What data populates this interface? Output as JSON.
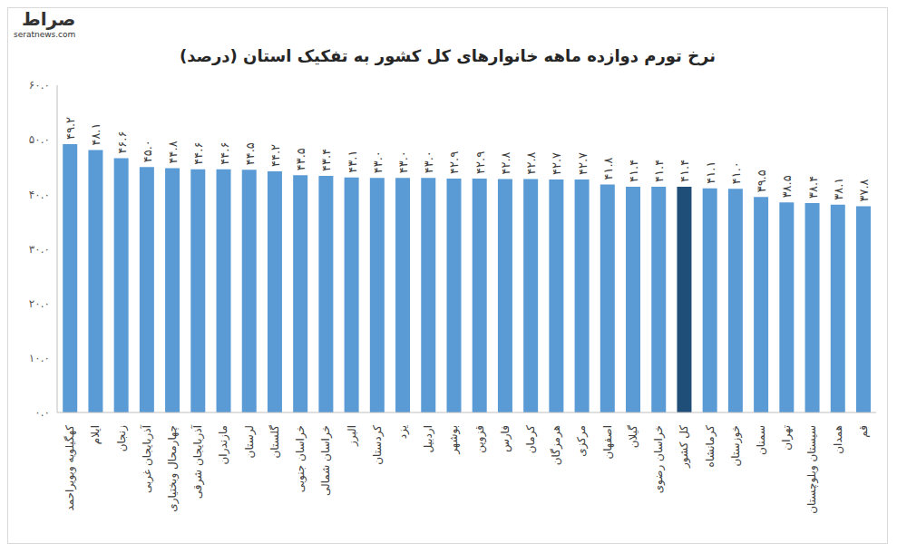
{
  "chart_data": {
    "type": "bar",
    "title": "نرخ تورم دوازده ماهه خانوارهای کل کشور به تفکیک استان (درصد)",
    "annotations": [
      "صراط",
      "seratnews.com"
    ],
    "categories": [
      "کهگیلویه وبویراحمد",
      "ایلام",
      "زنجان",
      "آذربایجان غربی",
      "چهارمحال وبختیاری",
      "آذربایجان شرقی",
      "مازندران",
      "لرستان",
      "گلستان",
      "خراسان جنوبی",
      "خراسان شمالی",
      "البرز",
      "کردستان",
      "یزد",
      "اردبیل",
      "بوشهر",
      "قزوین",
      "فارس",
      "کرمان",
      "هرمزگان",
      "مرکزی",
      "اصفهان",
      "گیلان",
      "خراسان رضوی",
      "کل کشور",
      "کرمانشاه",
      "خوزستان",
      "سمنان",
      "تهران",
      "سیستان وبلوچستان",
      "همدان",
      "قم"
    ],
    "values": [
      49.2,
      48.1,
      46.6,
      45.0,
      44.8,
      44.6,
      44.6,
      44.5,
      44.2,
      43.5,
      43.4,
      43.1,
      43.0,
      43.0,
      43.0,
      42.9,
      42.9,
      42.8,
      42.8,
      42.7,
      42.7,
      41.8,
      41.4,
      41.4,
      41.4,
      41.1,
      41.0,
      39.5,
      38.5,
      38.4,
      38.1,
      37.8
    ],
    "value_labels": [
      "۴۹.۲",
      "۴۸.۱",
      "۴۶.۶",
      "۴۵.۰",
      "۴۴.۸",
      "۴۴.۶",
      "۴۴.۶",
      "۴۴.۵",
      "۴۴.۲",
      "۴۳.۵",
      "۴۳.۴",
      "۴۳.۱",
      "۴۳.۰",
      "۴۳.۰",
      "۴۳.۰",
      "۴۲.۹",
      "۴۲.۹",
      "۴۲.۸",
      "۴۲.۸",
      "۴۲.۷",
      "۴۲.۷",
      "۴۱.۸",
      "۴۱.۴",
      "۴۱.۴",
      "۴۱.۴",
      "۴۱.۱",
      "۴۱.۰",
      "۳۹.۵",
      "۳۸.۵",
      "۳۸.۴",
      "۳۸.۱",
      "۳۷.۸"
    ],
    "colors": [
      "#5b9bd5",
      "#5b9bd5",
      "#5b9bd5",
      "#5b9bd5",
      "#5b9bd5",
      "#5b9bd5",
      "#5b9bd5",
      "#5b9bd5",
      "#5b9bd5",
      "#5b9bd5",
      "#5b9bd5",
      "#5b9bd5",
      "#5b9bd5",
      "#5b9bd5",
      "#5b9bd5",
      "#5b9bd5",
      "#5b9bd5",
      "#5b9bd5",
      "#5b9bd5",
      "#5b9bd5",
      "#5b9bd5",
      "#5b9bd5",
      "#5b9bd5",
      "#5b9bd5",
      "#1f4e79",
      "#5b9bd5",
      "#5b9bd5",
      "#5b9bd5",
      "#5b9bd5",
      "#5b9bd5",
      "#5b9bd5",
      "#5b9bd5"
    ],
    "ylim": [
      0,
      60
    ],
    "yticks": [
      {
        "value": 0,
        "label": "۰.۰"
      },
      {
        "value": 10,
        "label": "۱۰.۰"
      },
      {
        "value": 20,
        "label": "۲۰.۰"
      },
      {
        "value": 30,
        "label": "۳۰.۰"
      },
      {
        "value": 40,
        "label": "۴۰.۰"
      },
      {
        "value": 50,
        "label": "۵۰.۰"
      },
      {
        "value": 60,
        "label": "۶۰.۰"
      }
    ],
    "grid": false,
    "data_labels": true
  }
}
